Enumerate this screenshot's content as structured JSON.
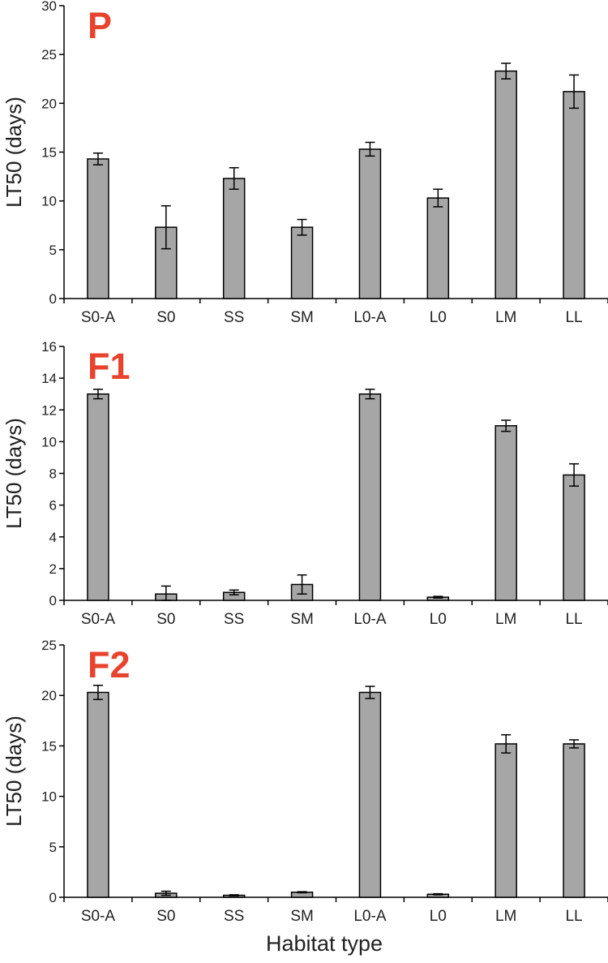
{
  "colors": {
    "bar_fill": "#a6a6a6",
    "bar_stroke": "#000000",
    "axis": "#000000",
    "panel_label": "#e8432e"
  },
  "xlabel": "Habitat type",
  "chart_data": [
    {
      "type": "bar",
      "panel": "P",
      "ylabel": "LT50 (days)",
      "ylim": [
        0,
        30
      ],
      "yticks": [
        0,
        5,
        10,
        15,
        20,
        25,
        30
      ],
      "categories": [
        "S0-A",
        "S0",
        "SS",
        "SM",
        "L0-A",
        "L0",
        "LM",
        "LL"
      ],
      "values": [
        14.3,
        7.3,
        12.3,
        7.3,
        15.3,
        10.3,
        23.3,
        21.2
      ],
      "errors": [
        0.6,
        2.2,
        1.1,
        0.8,
        0.7,
        0.9,
        0.8,
        1.7
      ]
    },
    {
      "type": "bar",
      "panel": "F1",
      "ylabel": "LT50 (days)",
      "ylim": [
        0,
        16
      ],
      "yticks": [
        0,
        2,
        4,
        6,
        8,
        10,
        12,
        14,
        16
      ],
      "categories": [
        "S0-A",
        "S0",
        "SS",
        "SM",
        "L0-A",
        "L0",
        "LM",
        "LL"
      ],
      "values": [
        13.0,
        0.4,
        0.5,
        1.0,
        13.0,
        0.2,
        11.0,
        7.9
      ],
      "errors": [
        0.3,
        0.5,
        0.15,
        0.6,
        0.3,
        0.05,
        0.35,
        0.7
      ]
    },
    {
      "type": "bar",
      "panel": "F2",
      "ylabel": "LT50 (days)",
      "ylim": [
        0,
        25
      ],
      "yticks": [
        0,
        5,
        10,
        15,
        20,
        25
      ],
      "categories": [
        "S0-A",
        "S0",
        "SS",
        "SM",
        "L0-A",
        "L0",
        "LM",
        "LL"
      ],
      "values": [
        20.3,
        0.4,
        0.2,
        0.5,
        20.3,
        0.3,
        15.2,
        15.2
      ],
      "errors": [
        0.7,
        0.2,
        0.05,
        0.05,
        0.6,
        0.05,
        0.9,
        0.4
      ]
    }
  ]
}
